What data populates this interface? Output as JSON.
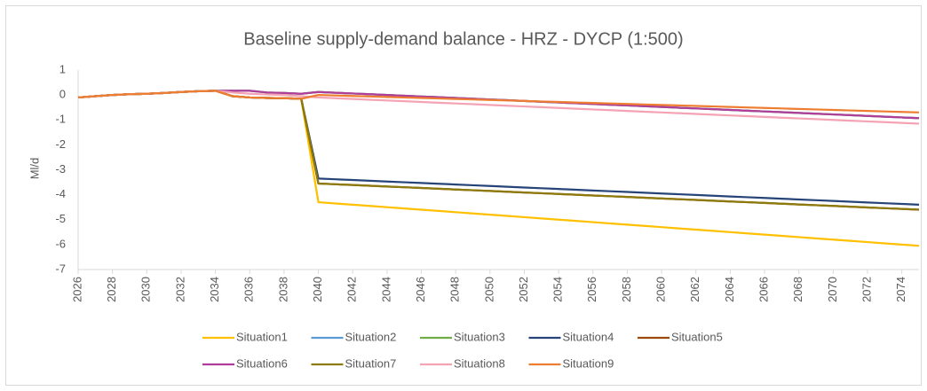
{
  "chart_data": {
    "type": "line",
    "title": "Baseline supply-demand balance - HRZ - DYCP (1:500)",
    "y_label": "Ml/d",
    "x": [
      2026,
      2027,
      2028,
      2029,
      2030,
      2031,
      2032,
      2033,
      2034,
      2035,
      2036,
      2037,
      2038,
      2039,
      2040,
      2041,
      2042,
      2043,
      2044,
      2045,
      2046,
      2047,
      2048,
      2049,
      2050,
      2051,
      2052,
      2053,
      2054,
      2055,
      2056,
      2057,
      2058,
      2059,
      2060,
      2061,
      2062,
      2063,
      2064,
      2065,
      2066,
      2067,
      2068,
      2069,
      2070,
      2071,
      2072,
      2073,
      2074,
      2075
    ],
    "xlim": [
      2026,
      2075
    ],
    "xticks": [
      2026,
      2028,
      2030,
      2032,
      2034,
      2036,
      2038,
      2040,
      2042,
      2044,
      2046,
      2048,
      2050,
      2052,
      2054,
      2056,
      2058,
      2060,
      2062,
      2064,
      2066,
      2068,
      2070,
      2072,
      2074
    ],
    "ylim": [
      -7,
      1
    ],
    "yticks": [
      1,
      0,
      -1,
      -2,
      -3,
      -4,
      -5,
      -6,
      -7
    ],
    "grid": false,
    "legend": "bottom",
    "series": [
      {
        "name": "Situation1",
        "color": "#ffc000",
        "values": [
          -0.1,
          -0.05,
          0,
          0.03,
          0.05,
          0.08,
          0.12,
          0.15,
          0.17,
          -0.05,
          -0.1,
          -0.12,
          -0.13,
          -0.15,
          -4.3,
          -4.35,
          -4.4,
          -4.45,
          -4.5,
          -4.55,
          -4.6,
          -4.65,
          -4.7,
          -4.75,
          -4.8,
          -4.85,
          -4.9,
          -4.95,
          -5,
          -5.05,
          -5.1,
          -5.15,
          -5.2,
          -5.25,
          -5.3,
          -5.35,
          -5.4,
          -5.45,
          -5.5,
          -5.55,
          -5.6,
          -5.65,
          -5.7,
          -5.75,
          -5.8,
          -5.85,
          -5.9,
          -5.95,
          -6,
          -6.05
        ]
      },
      {
        "name": "Situation2",
        "color": "#5b9bd5",
        "values": [
          -0.1,
          -0.05,
          0,
          0.03,
          0.05,
          0.08,
          0.12,
          0.15,
          0.17,
          0.17,
          0.17,
          0.1,
          0.08,
          0.05,
          0.12,
          0.09,
          0.06,
          0.03,
          0,
          -0.03,
          -0.06,
          -0.09,
          -0.12,
          -0.15,
          -0.18,
          -0.21,
          -0.24,
          -0.27,
          -0.3,
          -0.33,
          -0.36,
          -0.39,
          -0.42,
          -0.45,
          -0.48,
          -0.51,
          -0.54,
          -0.57,
          -0.6,
          -0.63,
          -0.66,
          -0.69,
          -0.72,
          -0.75,
          -0.78,
          -0.81,
          -0.84,
          -0.87,
          -0.9,
          -0.93
        ]
      },
      {
        "name": "Situation3",
        "color": "#70ad47",
        "values": [
          -0.1,
          -0.05,
          0,
          0.03,
          0.05,
          0.08,
          0.12,
          0.15,
          0.17,
          0.17,
          0.17,
          0.1,
          0.08,
          0.05,
          0.12,
          0.09,
          0.06,
          0.03,
          0,
          -0.03,
          -0.06,
          -0.09,
          -0.12,
          -0.15,
          -0.18,
          -0.21,
          -0.24,
          -0.27,
          -0.3,
          -0.33,
          -0.36,
          -0.39,
          -0.42,
          -0.45,
          -0.48,
          -0.51,
          -0.54,
          -0.57,
          -0.6,
          -0.63,
          -0.66,
          -0.69,
          -0.72,
          -0.75,
          -0.78,
          -0.81,
          -0.84,
          -0.87,
          -0.9,
          -0.93
        ]
      },
      {
        "name": "Situation4",
        "color": "#264478",
        "values": [
          -0.1,
          -0.05,
          0,
          0.03,
          0.05,
          0.08,
          0.12,
          0.15,
          0.17,
          -0.05,
          -0.1,
          -0.12,
          -0.13,
          -0.15,
          -3.35,
          -3.38,
          -3.41,
          -3.44,
          -3.47,
          -3.5,
          -3.53,
          -3.56,
          -3.59,
          -3.62,
          -3.65,
          -3.68,
          -3.71,
          -3.74,
          -3.77,
          -3.8,
          -3.83,
          -3.86,
          -3.89,
          -3.92,
          -3.95,
          -3.98,
          -4.01,
          -4.04,
          -4.07,
          -4.1,
          -4.13,
          -4.16,
          -4.19,
          -4.22,
          -4.25,
          -4.28,
          -4.31,
          -4.34,
          -4.37,
          -4.4
        ]
      },
      {
        "name": "Situation5",
        "color": "#9e480e",
        "values": [
          -0.1,
          -0.05,
          0,
          0.03,
          0.05,
          0.08,
          0.12,
          0.15,
          0.17,
          -0.05,
          -0.1,
          -0.12,
          -0.13,
          -0.15,
          -3.55,
          -3.58,
          -3.61,
          -3.64,
          -3.67,
          -3.7,
          -3.73,
          -3.76,
          -3.79,
          -3.82,
          -3.85,
          -3.88,
          -3.91,
          -3.94,
          -3.97,
          -4,
          -4.03,
          -4.06,
          -4.09,
          -4.12,
          -4.15,
          -4.18,
          -4.21,
          -4.24,
          -4.27,
          -4.3,
          -4.33,
          -4.36,
          -4.39,
          -4.42,
          -4.45,
          -4.48,
          -4.51,
          -4.54,
          -4.57,
          -4.6
        ]
      },
      {
        "name": "Situation6",
        "color": "#b03d9a",
        "values": [
          -0.1,
          -0.05,
          0,
          0.03,
          0.05,
          0.08,
          0.12,
          0.15,
          0.17,
          0.17,
          0.17,
          0.1,
          0.08,
          0.05,
          0.12,
          0.09,
          0.06,
          0.03,
          0,
          -0.03,
          -0.06,
          -0.09,
          -0.12,
          -0.15,
          -0.18,
          -0.21,
          -0.24,
          -0.27,
          -0.3,
          -0.33,
          -0.36,
          -0.39,
          -0.42,
          -0.45,
          -0.48,
          -0.51,
          -0.54,
          -0.57,
          -0.6,
          -0.63,
          -0.66,
          -0.69,
          -0.72,
          -0.75,
          -0.78,
          -0.81,
          -0.84,
          -0.87,
          -0.9,
          -0.93
        ]
      },
      {
        "name": "Situation7",
        "color": "#8c7a0c",
        "values": [
          -0.1,
          -0.05,
          0,
          0.03,
          0.05,
          0.08,
          0.12,
          0.15,
          0.17,
          -0.05,
          -0.1,
          -0.12,
          -0.13,
          -0.15,
          -3.55,
          -3.58,
          -3.61,
          -3.64,
          -3.67,
          -3.7,
          -3.73,
          -3.76,
          -3.79,
          -3.82,
          -3.85,
          -3.88,
          -3.91,
          -3.94,
          -3.97,
          -4,
          -4.03,
          -4.06,
          -4.09,
          -4.12,
          -4.15,
          -4.18,
          -4.21,
          -4.24,
          -4.27,
          -4.3,
          -4.33,
          -4.36,
          -4.39,
          -4.42,
          -4.45,
          -4.48,
          -4.51,
          -4.54,
          -4.57,
          -4.6
        ]
      },
      {
        "name": "Situation8",
        "color": "#f4a3b5",
        "values": [
          -0.1,
          -0.05,
          0,
          0.03,
          0.05,
          0.08,
          0.12,
          0.15,
          0.17,
          0.1,
          0.05,
          0.02,
          0,
          -0.05,
          -0.1,
          -0.13,
          -0.16,
          -0.19,
          -0.22,
          -0.25,
          -0.28,
          -0.31,
          -0.34,
          -0.37,
          -0.4,
          -0.43,
          -0.46,
          -0.49,
          -0.52,
          -0.55,
          -0.58,
          -0.61,
          -0.64,
          -0.67,
          -0.7,
          -0.73,
          -0.76,
          -0.79,
          -0.82,
          -0.85,
          -0.88,
          -0.91,
          -0.94,
          -0.97,
          -1,
          -1.03,
          -1.06,
          -1.09,
          -1.12,
          -1.15
        ]
      },
      {
        "name": "Situation9",
        "color": "#ed7d31",
        "values": [
          -0.1,
          -0.05,
          0,
          0.03,
          0.05,
          0.08,
          0.12,
          0.15,
          0.17,
          -0.05,
          -0.1,
          -0.12,
          -0.13,
          -0.15,
          0,
          -0.02,
          -0.04,
          -0.06,
          -0.08,
          -0.1,
          -0.12,
          -0.14,
          -0.16,
          -0.18,
          -0.2,
          -0.22,
          -0.24,
          -0.26,
          -0.28,
          -0.3,
          -0.32,
          -0.34,
          -0.36,
          -0.38,
          -0.4,
          -0.42,
          -0.44,
          -0.46,
          -0.48,
          -0.5,
          -0.52,
          -0.54,
          -0.56,
          -0.58,
          -0.6,
          -0.62,
          -0.64,
          -0.66,
          -0.68,
          -0.7
        ]
      }
    ]
  }
}
